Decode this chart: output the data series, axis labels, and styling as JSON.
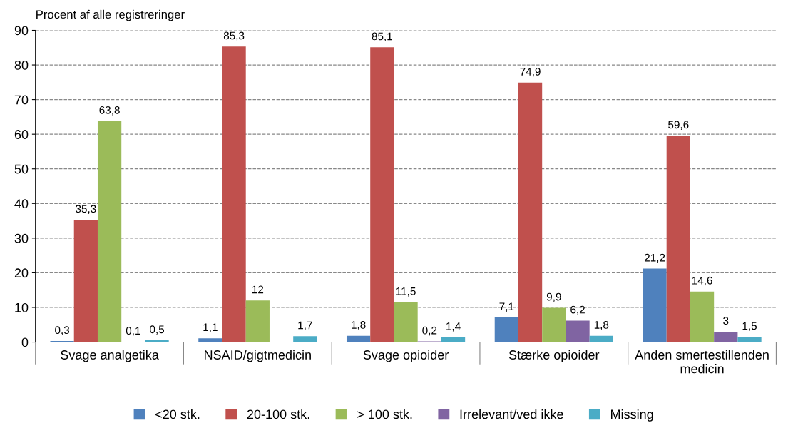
{
  "chart_data": {
    "type": "bar",
    "ylabel": "Procent af alle registreringer",
    "categories": [
      "Svage analgetika",
      "NSAID/gigtmedicin",
      "Svage opioider",
      "Stærke opioider",
      "Anden smertestillenden medicin"
    ],
    "series": [
      {
        "name": "<20 stk.",
        "color": "#4f81bd",
        "values": [
          0.3,
          1.1,
          1.8,
          7.1,
          21.2
        ],
        "value_labels": [
          "0,3",
          "1,1",
          "1,8",
          "7,1",
          "21,2"
        ]
      },
      {
        "name": "20-100 stk.",
        "color": "#c0504d",
        "values": [
          35.3,
          85.3,
          85.1,
          74.9,
          59.6
        ],
        "value_labels": [
          "35,3",
          "85,3",
          "85,1",
          "74,9",
          "59,6"
        ]
      },
      {
        "name": "> 100 stk.",
        "color": "#9bbb59",
        "values": [
          63.8,
          12,
          11.5,
          9.9,
          14.6
        ],
        "value_labels": [
          "63,8",
          "12",
          "11,5",
          "9,9",
          "14,6"
        ]
      },
      {
        "name": "Irrelevant/ved ikke",
        "color": "#8064a2",
        "values": [
          0.1,
          null,
          0.2,
          6.2,
          3
        ],
        "value_labels": [
          "0,1",
          null,
          "0,2",
          "6,2",
          "3"
        ]
      },
      {
        "name": "Missing",
        "color": "#4bacc6",
        "values": [
          0.5,
          1.7,
          1.4,
          1.8,
          1.5
        ],
        "value_labels": [
          "0,5",
          "1,7",
          "1,4",
          "1,8",
          "1,5"
        ]
      }
    ],
    "ylim": [
      0,
      90
    ],
    "yticks": [
      0,
      10,
      20,
      30,
      40,
      50,
      60,
      70,
      80,
      90
    ],
    "grid": "y",
    "legend": "bottom"
  }
}
